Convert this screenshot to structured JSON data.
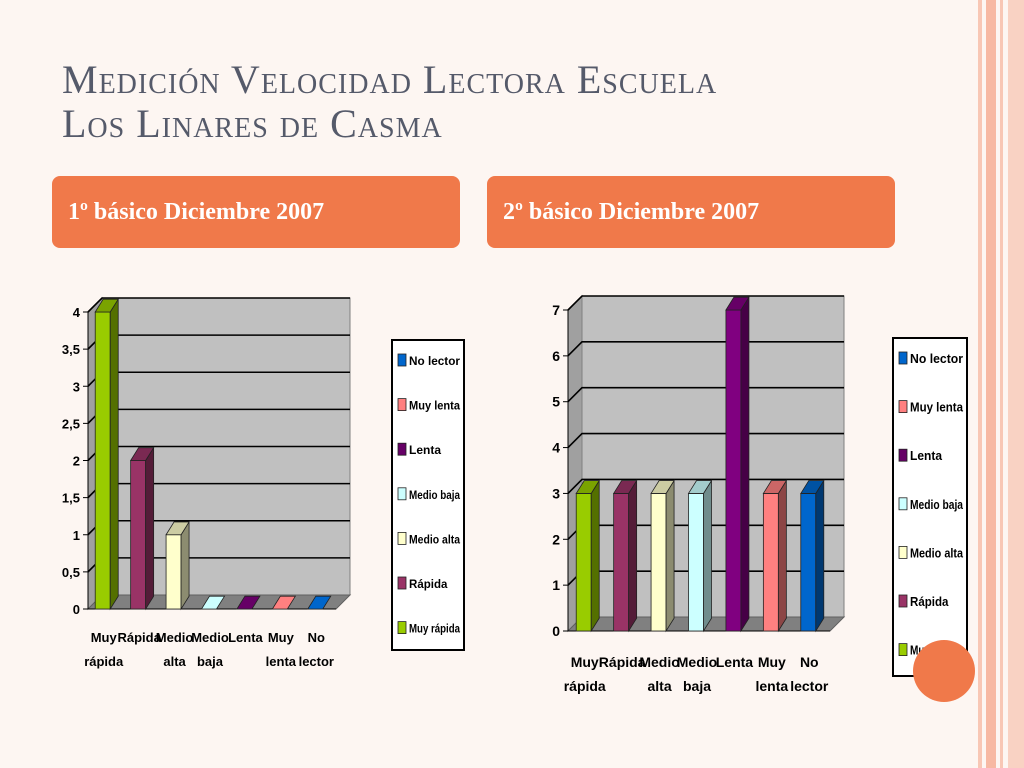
{
  "slide": {
    "title_line1": "Medición Velocidad Lectora Escuela",
    "title_line2": "Los Linares de Casma",
    "header_left": "1º básico Diciembre 2007",
    "header_right": "2º básico Diciembre 2007",
    "accent_color": "#f0794a"
  },
  "chart_data": [
    {
      "type": "bar",
      "title": "1º básico Diciembre 2007",
      "categories": [
        [
          "Muy",
          "rápida"
        ],
        [
          "Rápida"
        ],
        [
          "Medio",
          "alta"
        ],
        [
          "Medio",
          "baja"
        ],
        [
          "Lenta"
        ],
        [
          "Muy",
          "lenta"
        ],
        [
          "No",
          "lector"
        ]
      ],
      "values": [
        4,
        2,
        1,
        0,
        0,
        0,
        0
      ],
      "colors": [
        "#99cc00",
        "#993366",
        "#ffffcc",
        "#ccffff",
        "#660066",
        "#ff8080",
        "#0066cc"
      ],
      "yticks": [
        "0",
        "0,5",
        "1",
        "1,5",
        "2",
        "2,5",
        "3",
        "3,5",
        "4"
      ],
      "ylim": [
        0,
        4
      ],
      "grid": true,
      "legend_position": "right",
      "legend": [
        "No lector",
        "Muy lenta",
        "Lenta",
        "Medio baja",
        "Medio alta",
        "Rápida",
        "Muy rápida"
      ],
      "legend_colors": [
        "#0066cc",
        "#ff8080",
        "#660066",
        "#ccffff",
        "#ffffcc",
        "#993366",
        "#99cc00"
      ]
    },
    {
      "type": "bar",
      "title": "2º básico Diciembre 2007",
      "categories": [
        [
          "Muy",
          "rápida"
        ],
        [
          "Rápida"
        ],
        [
          "Medio",
          "alta"
        ],
        [
          "Medio",
          "baja"
        ],
        [
          "Lenta"
        ],
        [
          "Muy",
          "lenta"
        ],
        [
          "No",
          "lector"
        ]
      ],
      "values": [
        3,
        3,
        3,
        3,
        7,
        3,
        3
      ],
      "colors": [
        "#99cc00",
        "#993366",
        "#ffffcc",
        "#ccffff",
        "#800080",
        "#ff8080",
        "#0066cc"
      ],
      "yticks": [
        "0",
        "1",
        "2",
        "3",
        "4",
        "5",
        "6",
        "7"
      ],
      "ylim": [
        0,
        7
      ],
      "grid": true,
      "legend_position": "right",
      "legend": [
        "No lector",
        "Muy lenta",
        "Lenta",
        "Medio baja",
        "Medio alta",
        "Rápida",
        "Muy rápida"
      ],
      "legend_colors": [
        "#0066cc",
        "#ff8080",
        "#660066",
        "#ccffff",
        "#ffffcc",
        "#993366",
        "#99cc00"
      ]
    }
  ]
}
